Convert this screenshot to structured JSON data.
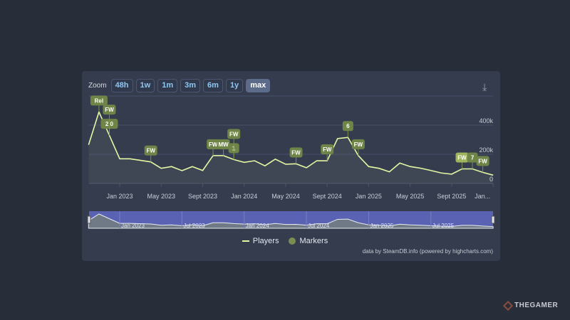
{
  "toolbar": {
    "zoom_label": "Zoom",
    "buttons": [
      "48h",
      "1w",
      "1m",
      "3m",
      "6m",
      "1y",
      "max"
    ],
    "active": "max",
    "download_icon": "download-icon"
  },
  "legend": {
    "players": "Players",
    "markers": "Markers"
  },
  "credits": "data by SteamDB.info (powered by highcharts.com)",
  "watermark": "THEGAMER",
  "colors": {
    "line": "#e6f7a4",
    "marker": "#6f8447",
    "navigator": "#5a63b3",
    "panel": "#343c4e"
  },
  "chart_data": {
    "type": "line",
    "ylim": [
      0,
      600000
    ],
    "y_ticks": [
      "0",
      "200k",
      "400k"
    ],
    "grid": true,
    "x_ticks": [
      "Jan 2023",
      "May 2023",
      "Sept 2023",
      "Jan 2024",
      "May 2024",
      "Sept 2024",
      "Jan 2025",
      "May 2025",
      "Sept 2025",
      "Jan..."
    ],
    "navigator_ticks": [
      "Jan 2023",
      "Jul 2023",
      "Jan 2024",
      "Jul 2024",
      "Jan 2025",
      "Jul 2025"
    ],
    "series": [
      {
        "name": "Players",
        "points": [
          [
            "2022-10",
            265000
          ],
          [
            "2022-11",
            491000
          ],
          [
            "2022-12",
            331000
          ],
          [
            "2023-01",
            169000
          ],
          [
            "2023-02",
            169000
          ],
          [
            "2023-04",
            148000
          ],
          [
            "2023-05",
            104000
          ],
          [
            "2023-06",
            116000
          ],
          [
            "2023-07",
            88000
          ],
          [
            "2023-08",
            116000
          ],
          [
            "2023-09",
            89000
          ],
          [
            "2023-10",
            191000
          ],
          [
            "2023-11",
            191000
          ],
          [
            "2023-12",
            164000
          ],
          [
            "2024-01",
            145000
          ],
          [
            "2024-02",
            156000
          ],
          [
            "2024-03",
            121000
          ],
          [
            "2024-04",
            167000
          ],
          [
            "2024-05",
            132000
          ],
          [
            "2024-06",
            135000
          ],
          [
            "2024-07",
            108000
          ],
          [
            "2024-08",
            156000
          ],
          [
            "2024-09",
            156000
          ],
          [
            "2024-10",
            308000
          ],
          [
            "2024-11",
            316000
          ],
          [
            "2024-12",
            191000
          ],
          [
            "2025-01",
            116000
          ],
          [
            "2025-02",
            104000
          ],
          [
            "2025-03",
            80000
          ],
          [
            "2025-04",
            140000
          ],
          [
            "2025-05",
            116000
          ],
          [
            "2025-06",
            105000
          ],
          [
            "2025-07",
            89000
          ],
          [
            "2025-08",
            72000
          ],
          [
            "2025-09",
            64000
          ],
          [
            "2025-10",
            100000
          ],
          [
            "2025-11",
            100000
          ],
          [
            "2025-12",
            76000
          ],
          [
            "2026-01",
            57000
          ]
        ]
      }
    ],
    "markers": [
      {
        "date": "2022-11",
        "label": "Rel"
      },
      {
        "date": "2022-12",
        "label": "2.0"
      },
      {
        "date": "2022-12",
        "label": "FW"
      },
      {
        "date": "2023-04",
        "label": "FW"
      },
      {
        "date": "2023-10",
        "label": "FW"
      },
      {
        "date": "2023-11",
        "label": "MW"
      },
      {
        "date": "2023-12",
        "label": "1"
      },
      {
        "date": "2023-12",
        "label": "FW"
      },
      {
        "date": "2024-06",
        "label": "FW"
      },
      {
        "date": "2024-09",
        "label": "FW"
      },
      {
        "date": "2024-11",
        "label": "6"
      },
      {
        "date": "2024-12",
        "label": "FW"
      },
      {
        "date": "2025-10",
        "label": "FW",
        "highlighted": true
      },
      {
        "date": "2025-11",
        "label": "7"
      },
      {
        "date": "2025-12",
        "label": "FW"
      }
    ]
  }
}
